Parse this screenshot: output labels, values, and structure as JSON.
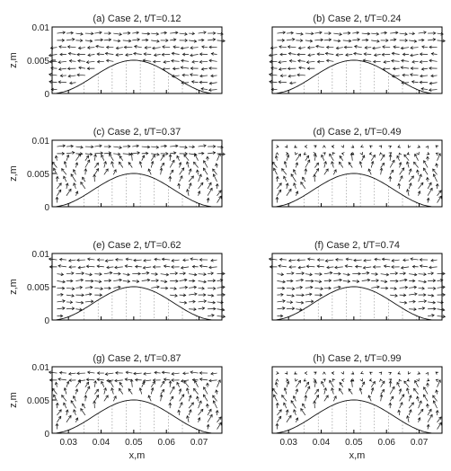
{
  "chart_data": [
    {
      "type": "quiver",
      "title": "(a) Case 2, t/T=0.12",
      "ylabel": "z,m",
      "xlabel": "",
      "xlim": [
        0.025,
        0.077
      ],
      "ylim": [
        0,
        0.01
      ],
      "yticks": [
        "0",
        "0.005",
        "0.01"
      ],
      "xticks": [],
      "grid": "dotted vertical lines",
      "bed": "sinusoidal bump peaking at z=0.005 at x=0.05",
      "flow_upper": "right",
      "flow_lower": "left"
    },
    {
      "type": "quiver",
      "title": "(b) Case 2, t/T=0.24",
      "ylabel": "",
      "xlabel": "",
      "xlim": [
        0.025,
        0.077
      ],
      "ylim": [
        0,
        0.01
      ],
      "yticks": [],
      "xticks": [],
      "grid": "dotted vertical lines",
      "bed": "sinusoidal bump peaking at z=0.005 at x=0.05",
      "flow_upper": "right",
      "flow_lower": "left"
    },
    {
      "type": "quiver",
      "title": "(c) Case 2, t/T=0.37",
      "ylabel": "z,m",
      "xlabel": "",
      "xlim": [
        0.025,
        0.077
      ],
      "ylim": [
        0,
        0.01
      ],
      "yticks": [
        "0",
        "0.005",
        "0.01"
      ],
      "xticks": [],
      "grid": "dotted vertical lines",
      "bed": "sinusoidal bump peaking at z=0.005 at x=0.05",
      "flow_upper": "right",
      "flow_lower": "mixed"
    },
    {
      "type": "quiver",
      "title": "(d) Case 2, t/T=0.49",
      "ylabel": "",
      "xlabel": "",
      "xlim": [
        0.025,
        0.077
      ],
      "ylim": [
        0,
        0.01
      ],
      "yticks": [],
      "xticks": [],
      "grid": "dotted vertical lines",
      "bed": "sinusoidal bump peaking at z=0.005 at x=0.05",
      "flow_upper": "weak",
      "flow_lower": "mixed"
    },
    {
      "type": "quiver",
      "title": "(e) Case 2, t/T=0.62",
      "ylabel": "z,m",
      "xlabel": "",
      "xlim": [
        0.025,
        0.077
      ],
      "ylim": [
        0,
        0.01
      ],
      "yticks": [
        "0",
        "0.005",
        "0.01"
      ],
      "xticks": [],
      "grid": "dotted vertical lines",
      "bed": "sinusoidal bump peaking at z=0.005 at x=0.05",
      "flow_upper": "left",
      "flow_lower": "right"
    },
    {
      "type": "quiver",
      "title": "(f) Case 2, t/T=0.74",
      "ylabel": "",
      "xlabel": "",
      "xlim": [
        0.025,
        0.077
      ],
      "ylim": [
        0,
        0.01
      ],
      "yticks": [],
      "xticks": [],
      "grid": "dotted vertical lines",
      "bed": "sinusoidal bump peaking at z=0.005 at x=0.05",
      "flow_upper": "left",
      "flow_lower": "right"
    },
    {
      "type": "quiver",
      "title": "(g) Case 2, t/T=0.87",
      "ylabel": "z,m",
      "xlabel": "x,m",
      "xlim": [
        0.025,
        0.077
      ],
      "ylim": [
        0,
        0.01
      ],
      "yticks": [
        "0",
        "0.005",
        "0.01"
      ],
      "xticks": [
        "0.03",
        "0.04",
        "0.05",
        "0.06",
        "0.07"
      ],
      "grid": "dotted vertical lines",
      "bed": "sinusoidal bump peaking at z=0.005 at x=0.05",
      "flow_upper": "left",
      "flow_lower": "mixed"
    },
    {
      "type": "quiver",
      "title": "(h) Case 2, t/T=0.99",
      "ylabel": "",
      "xlabel": "x,m",
      "xlim": [
        0.025,
        0.077
      ],
      "ylim": [
        0,
        0.01
      ],
      "yticks": [],
      "xticks": [
        "0.03",
        "0.04",
        "0.05",
        "0.06",
        "0.07"
      ],
      "grid": "dotted vertical lines",
      "bed": "sinusoidal bump peaking at z=0.005 at x=0.05",
      "flow_upper": "weak",
      "flow_lower": "mixed"
    }
  ]
}
